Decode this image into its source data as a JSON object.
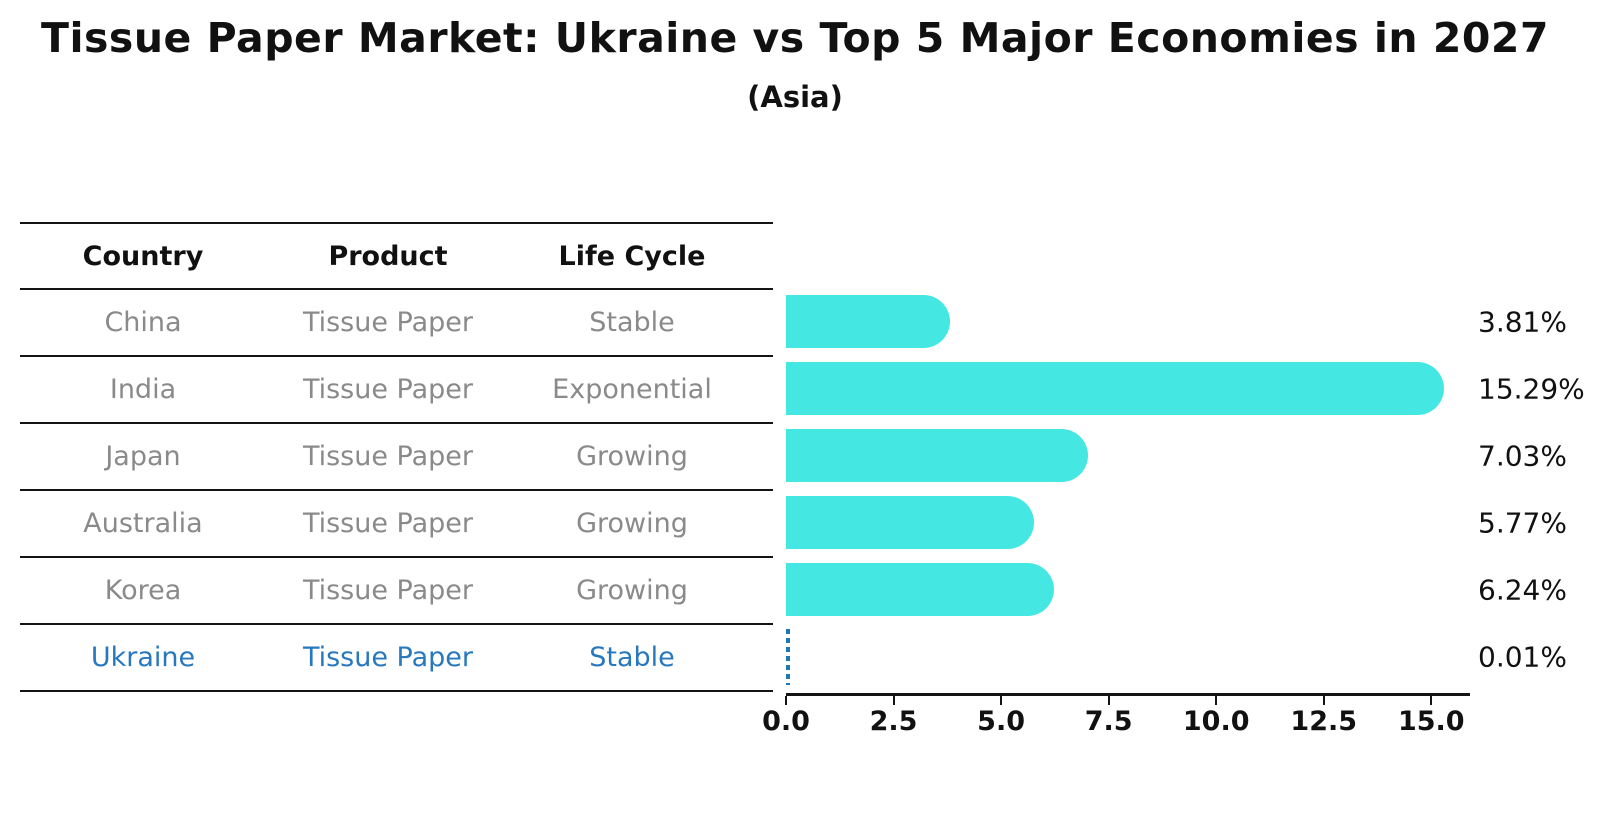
{
  "title": "Tissue Paper Market: Ukraine vs Top 5 Major Economies in 2027",
  "subtitle": "(Asia)",
  "table": {
    "headers": [
      "Country",
      "Product",
      "Life Cycle"
    ],
    "rows": [
      {
        "country": "China",
        "product": "Tissue Paper",
        "life_cycle": "Stable",
        "highlight": false
      },
      {
        "country": "India",
        "product": "Tissue Paper",
        "life_cycle": "Exponential",
        "highlight": false
      },
      {
        "country": "Japan",
        "product": "Tissue Paper",
        "life_cycle": "Growing",
        "highlight": false
      },
      {
        "country": "Australia",
        "product": "Tissue Paper",
        "life_cycle": "Growing",
        "highlight": false
      },
      {
        "country": "Korea",
        "product": "Tissue Paper",
        "life_cycle": "Growing",
        "highlight": false
      },
      {
        "country": "Ukraine",
        "product": "Tissue Paper",
        "life_cycle": "Stable",
        "highlight": true
      }
    ]
  },
  "chart_data": {
    "type": "bar",
    "orientation": "horizontal",
    "title": "Tissue Paper Market: Ukraine vs Top 5 Major Economies in 2027",
    "subtitle": "(Asia)",
    "categories": [
      "China",
      "India",
      "Japan",
      "Australia",
      "Korea",
      "Ukraine"
    ],
    "values": [
      3.81,
      15.29,
      7.03,
      5.77,
      6.24,
      0.01
    ],
    "value_labels": [
      "3.81%",
      "15.29%",
      "7.03%",
      "5.77%",
      "6.24%",
      "0.01%"
    ],
    "highlight_index": 5,
    "x_ticks": [
      {
        "value": 0,
        "label": "0.0"
      },
      {
        "value": 2.5,
        "label": "2.5"
      },
      {
        "value": 5,
        "label": "5.0"
      },
      {
        "value": 7.5,
        "label": "7.5"
      },
      {
        "value": 10,
        "label": "10.0"
      },
      {
        "value": 12.5,
        "label": "12.5"
      },
      {
        "value": 15,
        "label": "15.0"
      }
    ],
    "xlim": [
      0,
      15.9
    ],
    "grid": false,
    "legend": "none",
    "bar_color": "#45E7E2",
    "highlight_color": "#1f77b4"
  },
  "colors": {
    "bar": "#45E7E2",
    "highlight_line": "#1f77b4",
    "highlight_text": "#2878be",
    "muted_text": "#8a8a8a",
    "text": "#111111",
    "rule": "#141414",
    "background": "#ffffff"
  }
}
